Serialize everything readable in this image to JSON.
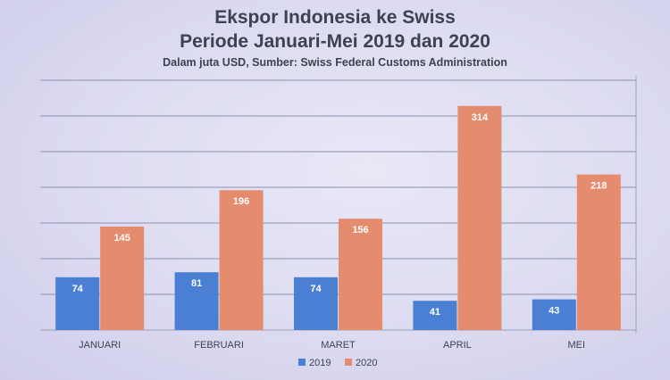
{
  "chart_data": {
    "type": "bar",
    "title": "Ekspor Indonesia ke Swiss",
    "title_line2": "Periode Januari-Mei 2019 dan 2020",
    "subtitle": "Dalam juta USD, Sumber: Swiss Federal Customs Administration",
    "categories": [
      "JANUARI",
      "FEBRUARI",
      "MARET",
      "APRIL",
      "MEI"
    ],
    "series": [
      {
        "name": "2019",
        "color": "#4a7fd4",
        "values": [
          74,
          81,
          74,
          41,
          43
        ]
      },
      {
        "name": "2020",
        "color": "#e58c6e",
        "values": [
          145,
          196,
          156,
          314,
          218
        ]
      }
    ],
    "ylim": [
      0,
      350
    ],
    "ytick_step": 50,
    "grid": true,
    "data_labels": true,
    "legend": "bottom-center"
  }
}
